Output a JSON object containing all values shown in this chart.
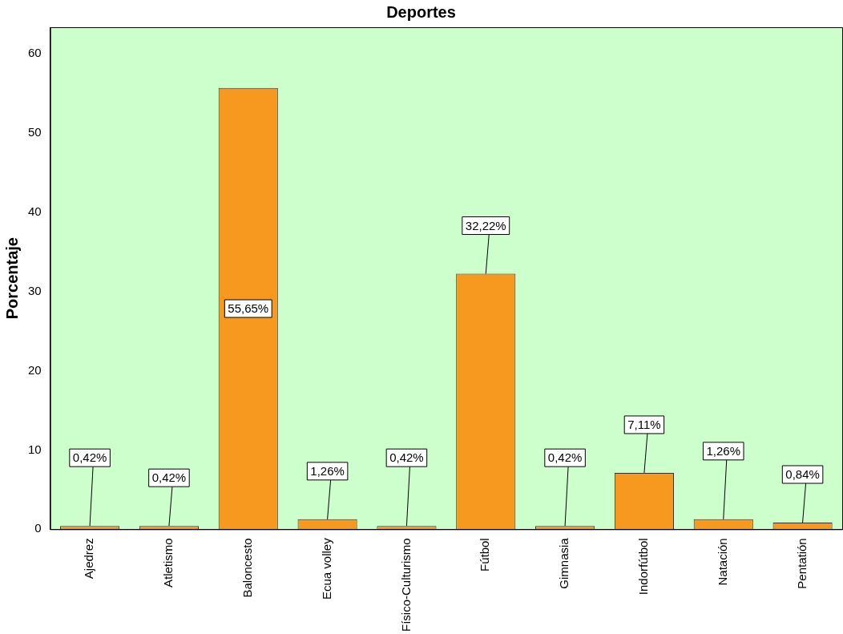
{
  "chart_data": {
    "type": "bar",
    "title": "Deportes",
    "ylabel": "Porcentaje",
    "categories": [
      "Ajedrez",
      "Atletismo",
      "Baloncesto",
      "Ecua volley",
      "Físico-Culturismo",
      "Fútbol",
      "Gimnasia",
      "Indorfútbol",
      "Natación",
      "Pentatión"
    ],
    "values": [
      0.42,
      0.42,
      55.65,
      1.26,
      0.42,
      32.22,
      0.42,
      7.11,
      1.26,
      0.84
    ],
    "value_labels": [
      "0,42%",
      "0,42%",
      "55,65%",
      "1,26%",
      "0,42%",
      "32,22%",
      "0,42%",
      "7,11%",
      "1,26%",
      "0,84%"
    ],
    "color": "#f7991f",
    "ylim": [
      0,
      63.3
    ],
    "yticks": [
      0,
      10,
      20,
      30,
      40,
      50,
      60
    ],
    "grid": false,
    "legend": false
  }
}
